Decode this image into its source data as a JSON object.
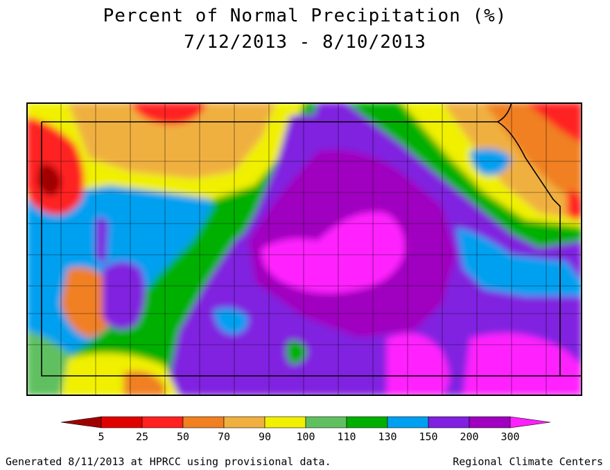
{
  "title": {
    "line1": "Percent of Normal Precipitation (%)",
    "line2": "7/12/2013 - 8/10/2013"
  },
  "legend": {
    "bins": [
      {
        "color": "#a00000",
        "label": "5"
      },
      {
        "color": "#e00000",
        "label": "25"
      },
      {
        "color": "#ff2020",
        "label": "50"
      },
      {
        "color": "#f08020",
        "label": "70"
      },
      {
        "color": "#f0b040",
        "label": "90"
      },
      {
        "color": "#f0f000",
        "label": "100"
      },
      {
        "color": "#60c060",
        "label": "110"
      },
      {
        "color": "#00b000",
        "label": "130"
      },
      {
        "color": "#00a0f0",
        "label": "150"
      },
      {
        "color": "#8020e0",
        "label": "200"
      },
      {
        "color": "#a000c0",
        "label": "300"
      },
      {
        "color": "#ff20ff",
        "label": ""
      }
    ],
    "ticks": [
      "5",
      "25",
      "50",
      "70",
      "90",
      "100",
      "110",
      "130",
      "150",
      "200",
      "300"
    ]
  },
  "colors": {
    "dark_red": "#a00000",
    "red": "#ff2020",
    "orange": "#f08020",
    "light_orange": "#f0b040",
    "yellow": "#f0f000",
    "light_green": "#60c060",
    "green": "#00b000",
    "blue": "#00a0f0",
    "violet": "#8020e0",
    "purple": "#a000c0",
    "magenta": "#ff20ff"
  },
  "footer": {
    "left": "Generated 8/11/2013 at HPRCC using provisional data.",
    "right": "Regional Climate Centers"
  }
}
